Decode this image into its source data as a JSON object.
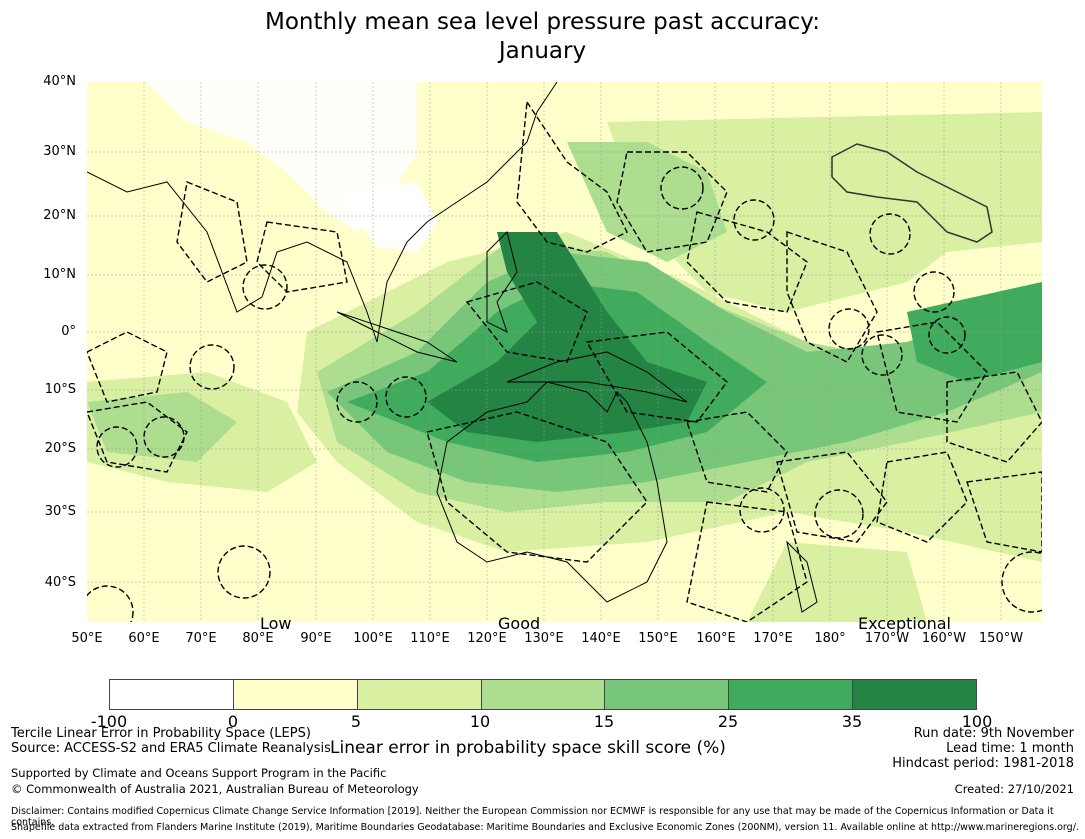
{
  "title": {
    "line1": "Monthly mean sea level pressure past accuracy:",
    "line2": "January"
  },
  "map": {
    "lat_labels": [
      "40°N",
      "30°N",
      "20°N",
      "10°N",
      "0°",
      "10°S",
      "20°S",
      "30°S",
      "40°S"
    ],
    "lon_labels": [
      "50°E",
      "60°E",
      "70°E",
      "80°E",
      "90°E",
      "100°E",
      "110°E",
      "120°E",
      "130°E",
      "140°E",
      "150°E",
      "160°E",
      "170°E",
      "180°",
      "170°W",
      "160°W",
      "150°W"
    ],
    "category_labels": {
      "low": "Low",
      "good": "Good",
      "exceptional": "Exceptional"
    }
  },
  "colorbar": {
    "ticks": [
      "-100",
      "0",
      "5",
      "10",
      "15",
      "25",
      "35",
      "100"
    ],
    "colors": [
      "#ffffff",
      "#ffffcc",
      "#d9f0a3",
      "#addd8e",
      "#78c679",
      "#41ab5d",
      "#238443"
    ],
    "label": "Linear error in probability space skill score (%)"
  },
  "info": {
    "method": "Tercile Linear Error in Probability Space (LEPS)",
    "source": "Source: ACCESS-S2 and ERA5 Climate Reanalysis",
    "support": "Supported by Climate and Oceans Support Program in the Pacific",
    "copyright": "© Commonwealth of Australia 2021, Australian Bureau of Meteorology",
    "run_date": "Run date: 9th November",
    "lead_time": "Lead time: 1 month",
    "hindcast": "Hindcast period: 1981-2018",
    "created": "Created: 27/10/2021",
    "disclaimer": "Disclaimer: Contains modified Copernicus Climate Change Service Information [2019]. Neither the European Commission nor ECMWF is responsible for any use that may be made of the Copernicus Information or Data it contains.",
    "shapefile": "Shapefile data extracted from Flanders Marine Institute (2019), Maritime Boundaries Geodatabase: Maritime Boundaries and Exclusive Economic Zones (200NM), version 11. Available online at http://www.marineregions.org/."
  }
}
